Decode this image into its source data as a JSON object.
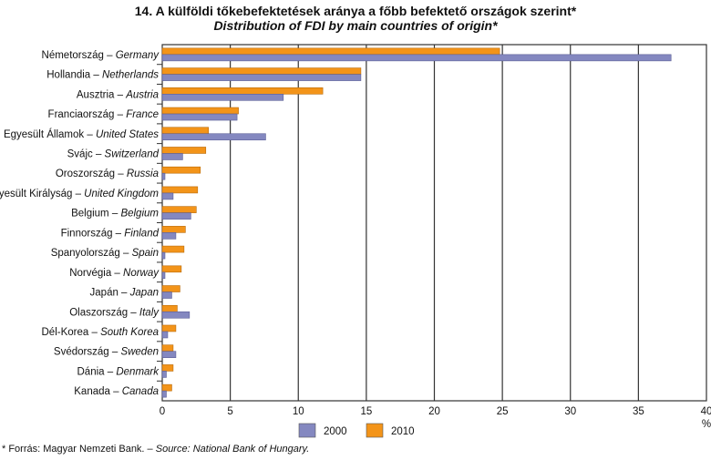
{
  "chart_data": {
    "type": "bar",
    "orientation": "horizontal",
    "title": "14. A külföldi tőkebefektetések aránya a főbb befektető országok szerint*",
    "subtitle": "Distribution of FDI by main countries of origin*",
    "xlabel": "%",
    "xlim": [
      0,
      40
    ],
    "xticks": [
      "0",
      "5",
      "10",
      "15",
      "20",
      "25",
      "30",
      "35",
      "40"
    ],
    "grid": true,
    "legend_position": "bottom-center",
    "categories": [
      {
        "hu": "Németország",
        "en": "Germany"
      },
      {
        "hu": "Hollandia",
        "en": "Netherlands"
      },
      {
        "hu": "Ausztria",
        "en": "Austria"
      },
      {
        "hu": "Franciaország",
        "en": "France"
      },
      {
        "hu": "Egyesült Államok",
        "en": "United States"
      },
      {
        "hu": "Svájc",
        "en": "Switzerland"
      },
      {
        "hu": "Oroszország",
        "en": "Russia"
      },
      {
        "hu": "Egyesült Királyság",
        "en": "United Kingdom"
      },
      {
        "hu": "Belgium",
        "en": "Belgium"
      },
      {
        "hu": "Finnország",
        "en": "Finland"
      },
      {
        "hu": "Spanyolország",
        "en": "Spain"
      },
      {
        "hu": "Norvégia",
        "en": "Norway"
      },
      {
        "hu": "Japán",
        "en": "Japan"
      },
      {
        "hu": "Olaszország",
        "en": "Italy"
      },
      {
        "hu": "Dél-Korea",
        "en": "South Korea"
      },
      {
        "hu": "Svédország",
        "en": "Sweden"
      },
      {
        "hu": "Dánia",
        "en": "Denmark"
      },
      {
        "hu": "Kanada",
        "en": "Canada"
      }
    ],
    "series": [
      {
        "name": "2000",
        "color": "#8488c0",
        "values": [
          37.4,
          14.6,
          8.9,
          5.5,
          7.6,
          1.5,
          0.2,
          0.8,
          2.1,
          1.0,
          0.2,
          0.2,
          0.7,
          2.0,
          0.4,
          1.0,
          0.3,
          0.3
        ]
      },
      {
        "name": "2010",
        "color": "#f39419",
        "values": [
          24.8,
          14.6,
          11.8,
          5.6,
          3.4,
          3.2,
          2.8,
          2.6,
          2.5,
          1.7,
          1.6,
          1.4,
          1.3,
          1.1,
          1.0,
          0.8,
          0.8,
          0.7
        ]
      }
    ]
  },
  "footnote": {
    "hu": "* Forrás: Magyar Nemzeti Bank. – ",
    "en": "Source: National Bank of Hungary."
  }
}
